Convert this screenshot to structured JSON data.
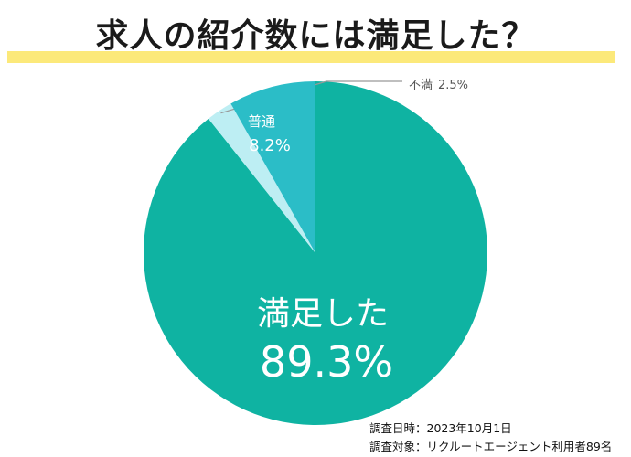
{
  "title": "求人の紹介数には満足した？",
  "chart_data": {
    "type": "pie",
    "title": "求人の紹介数には満足した？",
    "slices": [
      {
        "label": "満足した",
        "value": 89.3,
        "value_label": "89.3%",
        "color": "#0fb3a2"
      },
      {
        "label": "不満",
        "value": 2.5,
        "value_label": "2.5%",
        "color": "#bdeef3"
      },
      {
        "label": "普通",
        "value": 8.2,
        "value_label": "8.2%",
        "color": "#2bbdc7"
      }
    ]
  },
  "footnotes": {
    "date": "調査日時：2023年10月1日",
    "target": "調査対象：リクルートエージェント利用者89名"
  }
}
